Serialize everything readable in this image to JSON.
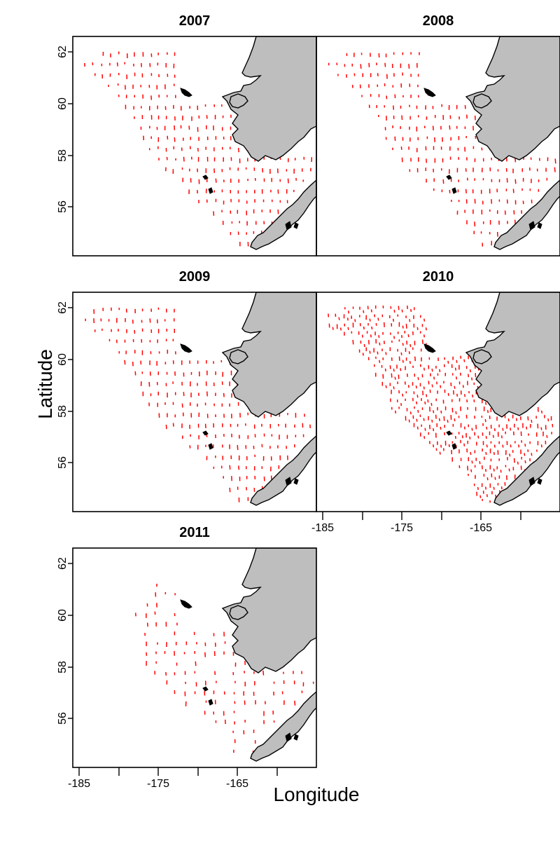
{
  "figure": {
    "xlabel": "Longitude",
    "ylabel": "Latitude",
    "lat_ticks": [
      "62",
      "60",
      "58",
      "56"
    ],
    "lon_ticks": [
      "-185",
      "-175",
      "-165"
    ]
  },
  "colors": {
    "stations": "#ff0000",
    "land": "#bebebe"
  },
  "chart_data": {
    "type": "scatter",
    "description_units": "degrees",
    "xlim": [
      -185,
      -158
    ],
    "ylim": [
      54.3,
      62.6
    ],
    "panels": [
      {
        "title": "2007",
        "density": 1.0
      },
      {
        "title": "2008",
        "density": 1.0
      },
      {
        "title": "2009",
        "density": 1.0
      },
      {
        "title": "2010",
        "density": 1.4
      },
      {
        "title": "2011",
        "density": 0.55
      }
    ]
  }
}
